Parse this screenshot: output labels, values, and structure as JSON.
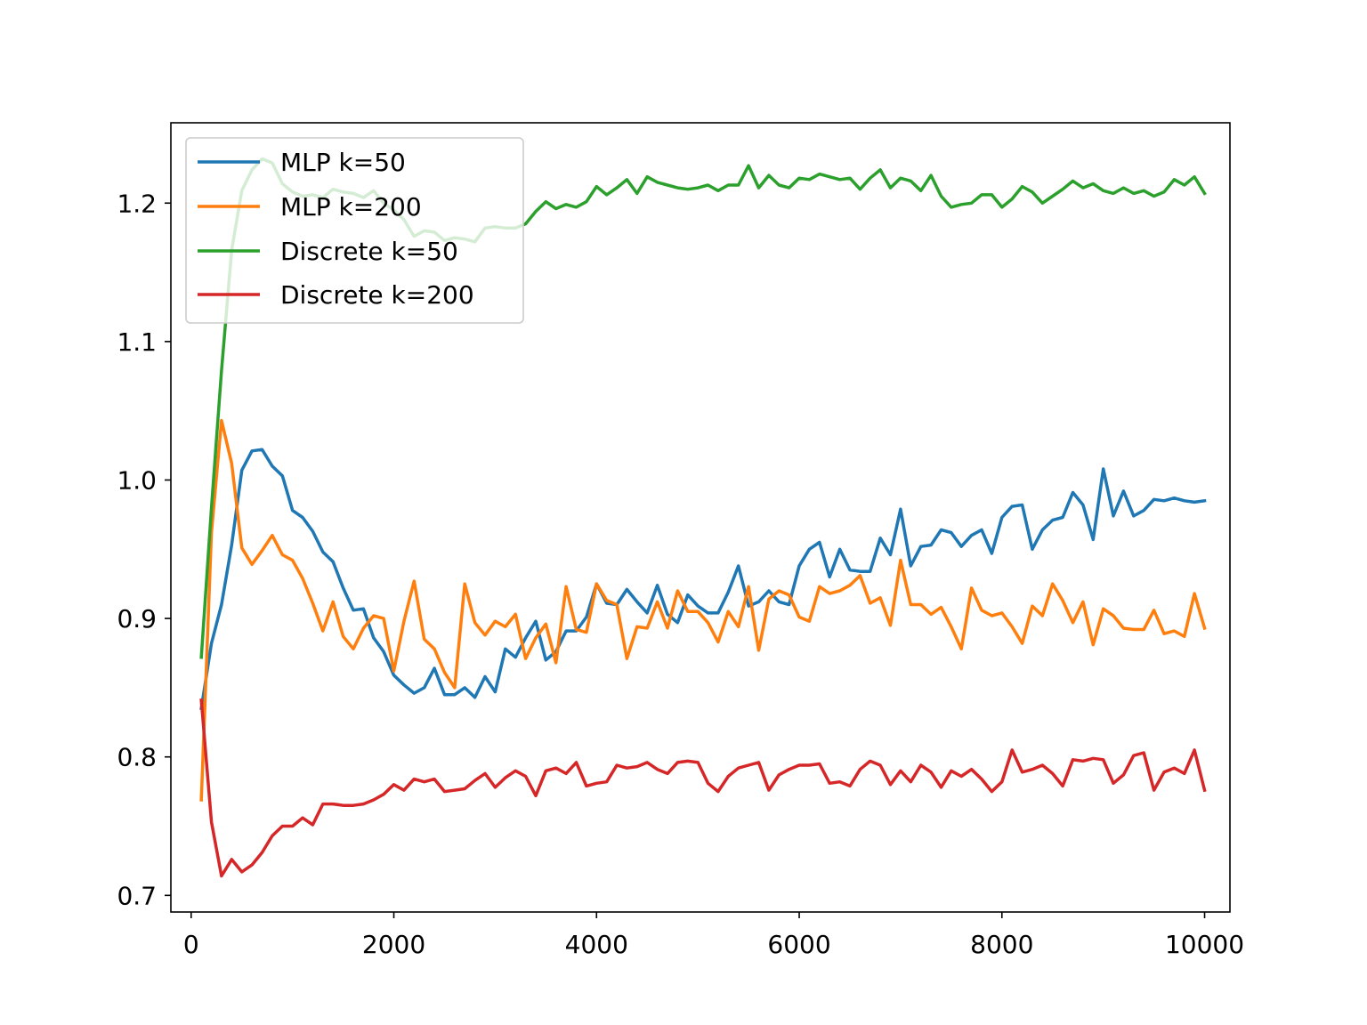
{
  "chart_data": {
    "type": "line",
    "title": "",
    "xlabel": "",
    "ylabel": "",
    "xlim": [
      -200,
      10250
    ],
    "ylim": [
      0.688,
      1.258
    ],
    "x_ticks": [
      0,
      2000,
      4000,
      6000,
      8000,
      10000
    ],
    "x_tick_labels": [
      "0",
      "2000",
      "4000",
      "6000",
      "8000",
      "10000"
    ],
    "y_ticks": [
      0.7,
      0.8,
      0.9,
      1.0,
      1.1,
      1.2
    ],
    "y_tick_labels": [
      "0.7",
      "0.8",
      "0.9",
      "1.0",
      "1.1",
      "1.2"
    ],
    "grid": false,
    "legend_position": "upper-left",
    "x": [
      100,
      200,
      300,
      400,
      500,
      600,
      700,
      800,
      900,
      1000,
      1100,
      1200,
      1300,
      1400,
      1500,
      1600,
      1700,
      1800,
      1900,
      2000,
      2100,
      2200,
      2300,
      2400,
      2500,
      2600,
      2700,
      2800,
      2900,
      3000,
      3100,
      3200,
      3300,
      3400,
      3500,
      3600,
      3700,
      3800,
      3900,
      4000,
      4100,
      4200,
      4300,
      4400,
      4500,
      4600,
      4700,
      4800,
      4900,
      5000,
      5100,
      5200,
      5300,
      5400,
      5500,
      5600,
      5700,
      5800,
      5900,
      6000,
      6100,
      6200,
      6300,
      6400,
      6500,
      6600,
      6700,
      6800,
      6900,
      7000,
      7100,
      7200,
      7300,
      7400,
      7500,
      7600,
      7700,
      7800,
      7900,
      8000,
      8100,
      8200,
      8300,
      8400,
      8500,
      8600,
      8700,
      8800,
      8900,
      9000,
      9100,
      9200,
      9300,
      9400,
      9500,
      9600,
      9700,
      9800,
      9900,
      10000
    ],
    "series": [
      {
        "name": "MLP k=50",
        "color": "#1f77b4",
        "values": [
          0.835,
          0.882,
          0.91,
          0.953,
          1.007,
          1.021,
          1.022,
          1.01,
          1.003,
          0.978,
          0.973,
          0.963,
          0.948,
          0.941,
          0.922,
          0.906,
          0.907,
          0.886,
          0.876,
          0.859,
          0.852,
          0.846,
          0.85,
          0.864,
          0.845,
          0.845,
          0.85,
          0.843,
          0.858,
          0.847,
          0.878,
          0.872,
          0.886,
          0.898,
          0.87,
          0.876,
          0.891,
          0.891,
          0.901,
          0.925,
          0.911,
          0.91,
          0.921,
          0.912,
          0.904,
          0.924,
          0.903,
          0.897,
          0.917,
          0.909,
          0.904,
          0.904,
          0.919,
          0.938,
          0.909,
          0.912,
          0.92,
          0.912,
          0.91,
          0.938,
          0.95,
          0.955,
          0.93,
          0.95,
          0.935,
          0.934,
          0.934,
          0.958,
          0.946,
          0.979,
          0.938,
          0.952,
          0.953,
          0.964,
          0.962,
          0.952,
          0.96,
          0.964,
          0.947,
          0.973,
          0.981,
          0.982,
          0.95,
          0.964,
          0.971,
          0.973,
          0.991,
          0.982,
          0.957,
          1.008,
          0.974,
          0.992,
          0.974,
          0.978,
          0.986,
          0.985,
          0.987,
          0.985,
          0.984,
          0.985
        ]
      },
      {
        "name": "MLP k=200",
        "color": "#ff7f0e",
        "values": [
          0.769,
          0.962,
          1.043,
          1.012,
          0.951,
          0.939,
          0.949,
          0.96,
          0.946,
          0.942,
          0.929,
          0.911,
          0.891,
          0.912,
          0.887,
          0.878,
          0.893,
          0.902,
          0.9,
          0.862,
          0.898,
          0.927,
          0.885,
          0.878,
          0.861,
          0.85,
          0.925,
          0.897,
          0.888,
          0.898,
          0.894,
          0.903,
          0.871,
          0.886,
          0.896,
          0.868,
          0.923,
          0.892,
          0.89,
          0.925,
          0.913,
          0.91,
          0.871,
          0.894,
          0.893,
          0.912,
          0.893,
          0.92,
          0.905,
          0.905,
          0.897,
          0.883,
          0.905,
          0.894,
          0.923,
          0.877,
          0.914,
          0.92,
          0.917,
          0.901,
          0.898,
          0.923,
          0.918,
          0.92,
          0.924,
          0.931,
          0.911,
          0.915,
          0.895,
          0.942,
          0.91,
          0.91,
          0.903,
          0.908,
          0.894,
          0.878,
          0.922,
          0.906,
          0.902,
          0.904,
          0.894,
          0.882,
          0.909,
          0.902,
          0.925,
          0.913,
          0.897,
          0.912,
          0.881,
          0.907,
          0.902,
          0.893,
          0.892,
          0.892,
          0.906,
          0.889,
          0.891,
          0.887,
          0.918,
          0.893
        ]
      },
      {
        "name": "Discrete k=50",
        "color": "#2ca02c",
        "values": [
          0.872,
          0.98,
          1.079,
          1.166,
          1.209,
          1.224,
          1.232,
          1.229,
          1.214,
          1.208,
          1.205,
          1.206,
          1.204,
          1.21,
          1.208,
          1.207,
          1.204,
          1.209,
          1.2,
          1.195,
          1.188,
          1.176,
          1.18,
          1.179,
          1.173,
          1.175,
          1.174,
          1.172,
          1.182,
          1.183,
          1.182,
          1.182,
          1.185,
          1.194,
          1.201,
          1.196,
          1.199,
          1.197,
          1.201,
          1.212,
          1.206,
          1.211,
          1.217,
          1.207,
          1.219,
          1.215,
          1.213,
          1.211,
          1.21,
          1.211,
          1.213,
          1.209,
          1.213,
          1.213,
          1.227,
          1.211,
          1.22,
          1.213,
          1.211,
          1.218,
          1.217,
          1.221,
          1.219,
          1.217,
          1.218,
          1.21,
          1.218,
          1.224,
          1.211,
          1.218,
          1.216,
          1.209,
          1.22,
          1.205,
          1.197,
          1.199,
          1.2,
          1.206,
          1.206,
          1.197,
          1.203,
          1.212,
          1.208,
          1.2,
          1.205,
          1.21,
          1.216,
          1.211,
          1.214,
          1.209,
          1.207,
          1.211,
          1.207,
          1.209,
          1.205,
          1.208,
          1.217,
          1.213,
          1.219,
          1.207
        ]
      },
      {
        "name": "Discrete k=200",
        "color": "#d62728",
        "values": [
          0.841,
          0.753,
          0.714,
          0.726,
          0.717,
          0.722,
          0.731,
          0.743,
          0.75,
          0.75,
          0.756,
          0.751,
          0.766,
          0.766,
          0.765,
          0.765,
          0.766,
          0.769,
          0.773,
          0.78,
          0.776,
          0.784,
          0.782,
          0.784,
          0.775,
          0.776,
          0.777,
          0.783,
          0.788,
          0.778,
          0.785,
          0.79,
          0.786,
          0.772,
          0.79,
          0.792,
          0.788,
          0.796,
          0.779,
          0.781,
          0.782,
          0.794,
          0.792,
          0.793,
          0.796,
          0.791,
          0.788,
          0.796,
          0.797,
          0.796,
          0.781,
          0.775,
          0.786,
          0.792,
          0.794,
          0.796,
          0.776,
          0.787,
          0.791,
          0.794,
          0.794,
          0.795,
          0.781,
          0.782,
          0.779,
          0.791,
          0.797,
          0.794,
          0.78,
          0.79,
          0.782,
          0.794,
          0.789,
          0.778,
          0.79,
          0.786,
          0.791,
          0.784,
          0.775,
          0.782,
          0.805,
          0.789,
          0.791,
          0.794,
          0.788,
          0.779,
          0.798,
          0.797,
          0.799,
          0.798,
          0.781,
          0.787,
          0.801,
          0.803,
          0.776,
          0.789,
          0.792,
          0.788,
          0.805,
          0.776
        ]
      }
    ]
  }
}
